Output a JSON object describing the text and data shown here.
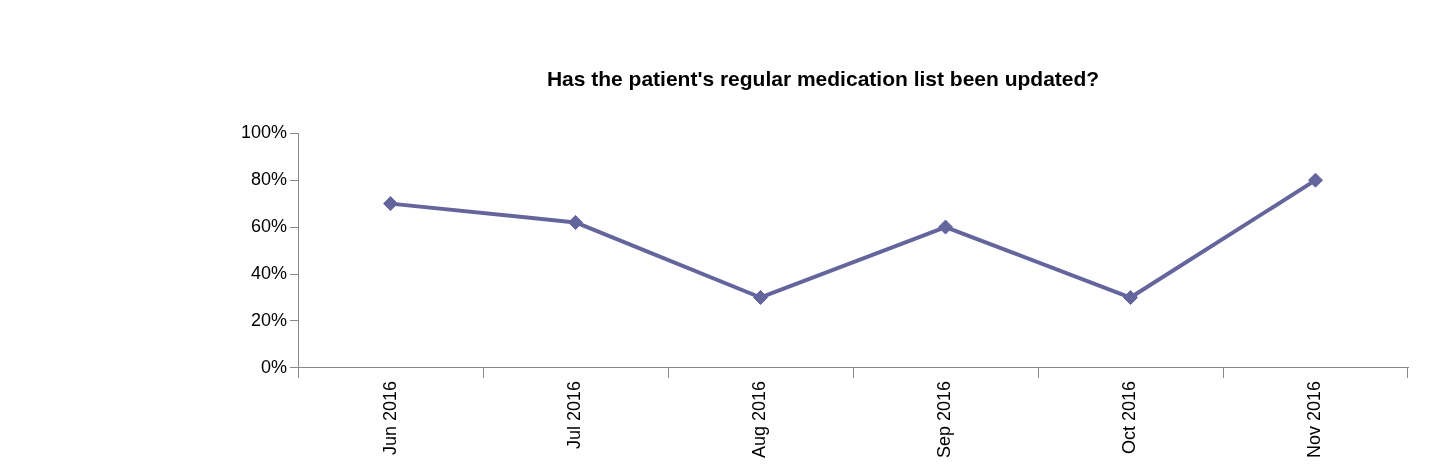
{
  "chart_data": {
    "type": "line",
    "title": "Has the patient's regular medication list been updated?",
    "categories": [
      "Jun 2016",
      "Jul 2016",
      "Aug 2016",
      "Sep 2016",
      "Oct 2016",
      "Nov 2016"
    ],
    "series": [
      {
        "color": "#65659e",
        "values": [
          70,
          62,
          30,
          60,
          30,
          80
        ]
      }
    ],
    "ylim": [
      0,
      100
    ],
    "yticks": [
      {
        "value": 0,
        "label": "0%"
      },
      {
        "value": 20,
        "label": "20%"
      },
      {
        "value": 40,
        "label": "40%"
      },
      {
        "value": 60,
        "label": "60%"
      },
      {
        "value": 80,
        "label": "80%"
      },
      {
        "value": 100,
        "label": "100%"
      }
    ],
    "marker": "diamond",
    "line_style": "solid"
  }
}
